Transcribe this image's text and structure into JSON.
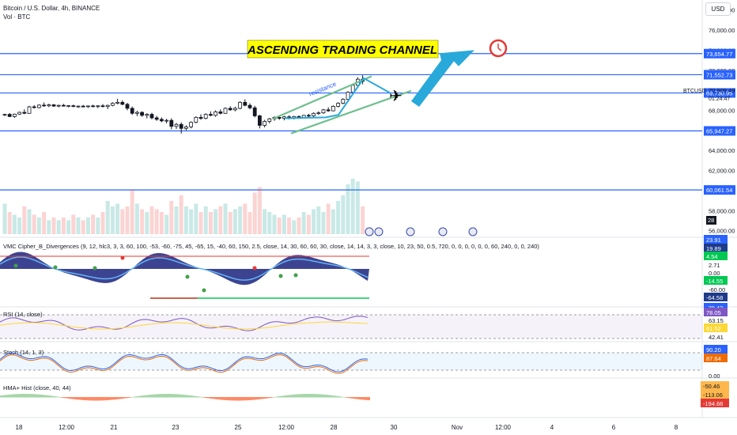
{
  "header": {
    "symbol": "Bitcoin / U.S. Dollar, 4h, BINANCE",
    "volume_label": "Vol · BTC",
    "currency": "USD",
    "ticker": "BTCUSD",
    "last_price": "70,909.49",
    "countdown": "01:24:47"
  },
  "annotations": {
    "title": "ASCENDING TRADING CHANNEL",
    "resistance": "resistance"
  },
  "colors": {
    "up": "#26a69a",
    "down": "#ef5350",
    "level": "#2962ff",
    "channel": "#6fbf8f",
    "arrow": "#29a9d9",
    "banner": "#ffff00"
  },
  "price_axis": {
    "ticks": [
      "78,000.00",
      "76,000.00",
      "74,000.00",
      "72,000.00",
      "70,000.00",
      "68,000.00",
      "66,000.00",
      "64,000.00",
      "62,000.00",
      "58,000.00",
      "56,000.00"
    ],
    "volume_badge": "28"
  },
  "levels": [
    {
      "price": 73654.77,
      "label": "73,654.77"
    },
    {
      "price": 71552.73,
      "label": "71,552.73"
    },
    {
      "price": 69730.95,
      "label": "69,730.95"
    },
    {
      "price": 65947.27,
      "label": "65,947.27"
    },
    {
      "price": 60061.54,
      "label": "60,061.54"
    }
  ],
  "x_axis": [
    "18",
    "12:00",
    "21",
    "23",
    "25",
    "12:00",
    "28",
    "30",
    "Nov",
    "12:00",
    "4",
    "6",
    "8"
  ],
  "indicators": {
    "vmc": {
      "label": "VMC Cipher_B_Divergences (9, 12, hlc3, 3, 3, 60, 100, -53, -60, -75, 45, -65, 15, -40, 60, 150, 2.5, close, 14, 30, 60, 60, 30, close, 14, 14, 3, 3, close, 10, 23, 50, 0.5, 720, 0, 0, 0, 0, 0, 0, 60, 240, 0, 0, 240)",
      "ticks": [
        "2.71",
        "0.00",
        "-60.00"
      ],
      "badges": [
        {
          "text": "23.91",
          "color": "#2962ff"
        },
        {
          "text": "19.89",
          "color": "#1e3a8a"
        },
        {
          "text": "4.54",
          "color": "#00c853"
        },
        {
          "text": "-14.55",
          "color": "#00c853"
        },
        {
          "text": "-64.58",
          "color": "#1e3a8a"
        },
        {
          "text": "-70.43",
          "color": "#2962ff"
        }
      ]
    },
    "rsi": {
      "label": "RSI (14, close)",
      "ticks": [
        "63.15",
        "42.41"
      ],
      "badges": [
        {
          "text": "78.05",
          "color": "#7e57c2"
        },
        {
          "text": "61.52",
          "color": "#fdd835"
        }
      ]
    },
    "stoch": {
      "label": "Stoch (14, 1, 3)",
      "ticks": [
        "0.00"
      ],
      "badges": [
        {
          "text": "90.20",
          "color": "#2962ff"
        },
        {
          "text": "87.64",
          "color": "#ef6c00"
        }
      ]
    },
    "hma": {
      "label": "HMA+ Hist (close, 40, 44)",
      "badges": [
        {
          "text": "-50.46",
          "color": "#ffb74d"
        },
        {
          "text": "-113.06",
          "color": "#ffb74d"
        },
        {
          "text": "-194.66",
          "color": "#e53935"
        }
      ]
    }
  },
  "chart_data": {
    "type": "candlestick",
    "title": "Bitcoin / U.S. Dollar, 4h, BINANCE",
    "ylim": [
      55500,
      79000
    ],
    "x_labels": [
      "18",
      "12:00",
      "21",
      "23",
      "25",
      "12:00",
      "28",
      "30",
      "Nov",
      "12:00",
      "4",
      "6",
      "8"
    ],
    "candles": [
      [
        67520,
        67650,
        67420,
        67600
      ],
      [
        67600,
        67730,
        67330,
        67380
      ],
      [
        67380,
        67680,
        67250,
        67620
      ],
      [
        67620,
        67870,
        67550,
        67800
      ],
      [
        67800,
        68100,
        67620,
        67700
      ],
      [
        67700,
        68450,
        67650,
        68350
      ],
      [
        68350,
        68520,
        68180,
        68270
      ],
      [
        68270,
        68600,
        68200,
        68520
      ],
      [
        68520,
        68780,
        68350,
        68450
      ],
      [
        68450,
        68650,
        68320,
        68550
      ],
      [
        68550,
        68620,
        68350,
        68420
      ],
      [
        68420,
        68560,
        68300,
        68500
      ],
      [
        68500,
        68640,
        68380,
        68420
      ],
      [
        68420,
        68520,
        68300,
        68460
      ],
      [
        68460,
        68560,
        68320,
        68380
      ],
      [
        68380,
        68480,
        68250,
        68420
      ],
      [
        68420,
        68540,
        68300,
        68360
      ],
      [
        68360,
        68480,
        68240,
        68440
      ],
      [
        68440,
        68560,
        68320,
        68380
      ],
      [
        68380,
        68500,
        68220,
        68450
      ],
      [
        68450,
        68620,
        68300,
        68380
      ],
      [
        68380,
        68560,
        68120,
        68500
      ],
      [
        68500,
        68800,
        68400,
        68700
      ],
      [
        68700,
        69150,
        68600,
        68800
      ],
      [
        68800,
        69000,
        68500,
        68600
      ],
      [
        68600,
        68750,
        68000,
        68200
      ],
      [
        68200,
        68380,
        67550,
        67700
      ],
      [
        67700,
        67950,
        67420,
        67800
      ],
      [
        67800,
        67900,
        67350,
        67500
      ],
      [
        67500,
        67700,
        67200,
        67600
      ],
      [
        67600,
        67750,
        67100,
        67250
      ],
      [
        67250,
        67450,
        66950,
        67100
      ],
      [
        67100,
        67300,
        66800,
        66950
      ],
      [
        66950,
        67150,
        66700,
        67000
      ],
      [
        67000,
        67200,
        66100,
        66400
      ],
      [
        66400,
        66750,
        66150,
        66600
      ],
      [
        66600,
        66800,
        65700,
        66200
      ],
      [
        66200,
        66500,
        66000,
        66350
      ],
      [
        66350,
        66900,
        66200,
        66800
      ],
      [
        66800,
        67400,
        66700,
        67300
      ],
      [
        67300,
        67600,
        67050,
        67200
      ],
      [
        67200,
        67700,
        67100,
        67600
      ],
      [
        67600,
        67900,
        67400,
        67500
      ],
      [
        67500,
        68000,
        67350,
        67850
      ],
      [
        67850,
        68100,
        67600,
        67700
      ],
      [
        67700,
        68300,
        67650,
        68200
      ],
      [
        68200,
        68400,
        67950,
        68050
      ],
      [
        68050,
        68350,
        67900,
        68200
      ],
      [
        68200,
        68900,
        68100,
        68800
      ],
      [
        68800,
        69100,
        68400,
        68500
      ],
      [
        68500,
        68700,
        68100,
        68250
      ],
      [
        68250,
        68450,
        67300,
        67450
      ],
      [
        67450,
        67550,
        66200,
        66500
      ],
      [
        66500,
        67050,
        66300,
        66900
      ],
      [
        66900,
        67250,
        66700,
        67150
      ],
      [
        67150,
        67400,
        66950,
        67300
      ],
      [
        67300,
        67500,
        67050,
        67200
      ],
      [
        67200,
        67450,
        67000,
        67350
      ],
      [
        67350,
        67500,
        67100,
        67250
      ],
      [
        67250,
        67450,
        67100,
        67380
      ],
      [
        67380,
        67500,
        67200,
        67300
      ],
      [
        67300,
        67550,
        67250,
        67500
      ],
      [
        67500,
        67650,
        67300,
        67450
      ],
      [
        67450,
        67800,
        67350,
        67700
      ],
      [
        67700,
        67900,
        67550,
        67750
      ],
      [
        67750,
        68150,
        67650,
        68050
      ],
      [
        68050,
        68300,
        67850,
        67950
      ],
      [
        67950,
        68500,
        67900,
        68400
      ],
      [
        68400,
        68800,
        68300,
        68700
      ],
      [
        68700,
        69200,
        68600,
        69100
      ],
      [
        69100,
        69900,
        69000,
        69800
      ],
      [
        69800,
        70600,
        69600,
        70500
      ],
      [
        70500,
        71300,
        70300,
        71100
      ],
      [
        71100,
        71500,
        70600,
        70900
      ]
    ],
    "volumes": [
      0.55,
      0.4,
      0.35,
      0.3,
      0.5,
      0.45,
      0.35,
      0.3,
      0.4,
      0.25,
      0.3,
      0.25,
      0.3,
      0.25,
      0.35,
      0.3,
      0.25,
      0.3,
      0.35,
      0.3,
      0.4,
      0.6,
      0.5,
      0.55,
      0.45,
      0.5,
      0.8,
      0.55,
      0.45,
      0.4,
      0.5,
      0.45,
      0.4,
      0.35,
      0.6,
      0.5,
      0.7,
      0.5,
      0.45,
      0.55,
      0.4,
      0.5,
      0.4,
      0.45,
      0.5,
      0.55,
      0.4,
      0.45,
      0.5,
      0.55,
      0.4,
      0.75,
      0.85,
      0.45,
      0.4,
      0.35,
      0.3,
      0.35,
      0.3,
      0.25,
      0.3,
      0.4,
      0.35,
      0.45,
      0.5,
      0.4,
      0.55,
      0.45,
      0.6,
      0.7,
      0.9,
      1.0,
      0.95,
      0.5
    ]
  }
}
